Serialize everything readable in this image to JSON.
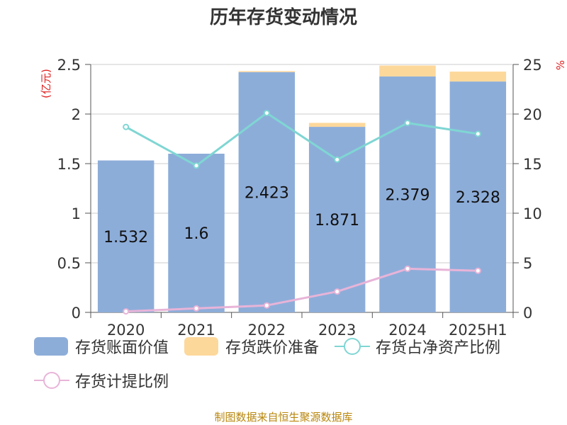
{
  "title": "历年存货变动情况",
  "source": "制图数据来自恒生聚源数据库",
  "chart_data": {
    "type": "bar",
    "title": "历年存货变动情况",
    "categories": [
      "2020",
      "2021",
      "2022",
      "2023",
      "2024",
      "2025H1"
    ],
    "left_axis": {
      "label": "(亿元)",
      "range": [
        0,
        2.5
      ],
      "ticks": [
        "0",
        "0.5",
        "1",
        "1.5",
        "2",
        "2.5"
      ]
    },
    "right_axis": {
      "label": "%",
      "range": [
        0,
        25
      ],
      "ticks": [
        "0",
        "5",
        "10",
        "15",
        "20",
        "25"
      ]
    },
    "grid": true,
    "legend_position": "bottom",
    "series": [
      {
        "name": "存货账面价值",
        "kind": "bar",
        "axis": "left",
        "color": "#8dadd9",
        "values": [
          1.532,
          1.6,
          2.423,
          1.871,
          2.379,
          2.328
        ],
        "labels": [
          "1.532",
          "1.6",
          "2.423",
          "1.871",
          "2.379",
          "2.328"
        ]
      },
      {
        "name": "存货跌价准备",
        "kind": "bar",
        "axis": "left",
        "stacked": true,
        "color": "#fdd89b",
        "values": [
          0.0,
          0.0,
          0.01,
          0.04,
          0.11,
          0.1
        ]
      },
      {
        "name": "存货占净资产比例",
        "kind": "line",
        "axis": "right",
        "color": "#7fd6d3",
        "values": [
          18.7,
          14.8,
          20.1,
          15.4,
          19.1,
          18.0
        ]
      },
      {
        "name": "存货计提比例",
        "kind": "line",
        "axis": "right",
        "color": "#e8b4d8",
        "values": [
          0.1,
          0.4,
          0.7,
          2.1,
          4.4,
          4.2
        ]
      }
    ]
  }
}
